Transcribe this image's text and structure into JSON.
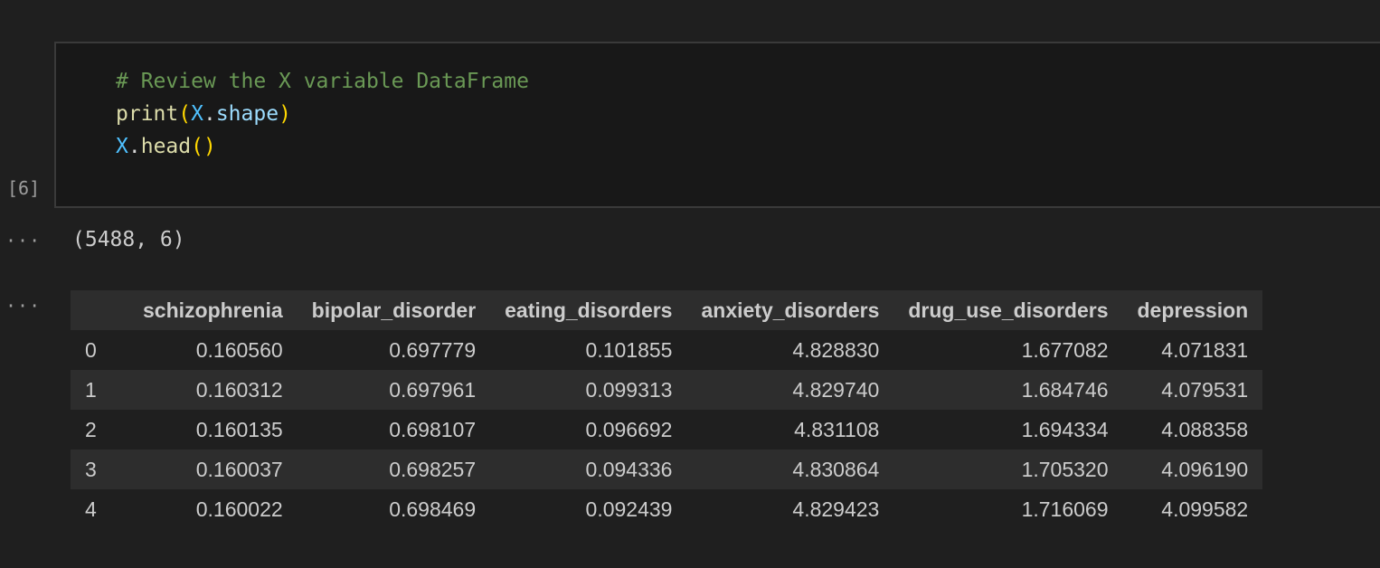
{
  "cell": {
    "execution_count": "[6]",
    "code_lines": [
      {
        "comment": "# Review the X variable DataFrame"
      },
      {
        "func": "print",
        "open": "(",
        "var": "X",
        "dot": ".",
        "attr": "shape",
        "close": ")"
      },
      {
        "var": "X",
        "dot": ".",
        "func": "head",
        "parens": "()"
      }
    ]
  },
  "outputs": {
    "ellipsis_1": "···",
    "ellipsis_2": "···",
    "shape_text": "(5488, 6)"
  },
  "dataframe": {
    "columns": [
      "",
      "schizophrenia",
      "bipolar_disorder",
      "eating_disorders",
      "anxiety_disorders",
      "drug_use_disorders",
      "depression"
    ],
    "rows": [
      [
        "0",
        "0.160560",
        "0.697779",
        "0.101855",
        "4.828830",
        "1.677082",
        "4.071831"
      ],
      [
        "1",
        "0.160312",
        "0.697961",
        "0.099313",
        "4.829740",
        "1.684746",
        "4.079531"
      ],
      [
        "2",
        "0.160135",
        "0.698107",
        "0.096692",
        "4.831108",
        "1.694334",
        "4.088358"
      ],
      [
        "3",
        "0.160037",
        "0.698257",
        "0.094336",
        "4.830864",
        "1.705320",
        "4.096190"
      ],
      [
        "4",
        "0.160022",
        "0.698469",
        "0.092439",
        "4.829423",
        "1.716069",
        "4.099582"
      ]
    ]
  },
  "colors": {
    "background": "#1f1f1f",
    "code_background": "#181818",
    "comment": "#6a9955",
    "function": "#dcdcaa",
    "variable": "#4fc1ff",
    "attribute": "#9cdcfe",
    "bracket": "#ffd700",
    "stripe": "#2d2d2d"
  }
}
